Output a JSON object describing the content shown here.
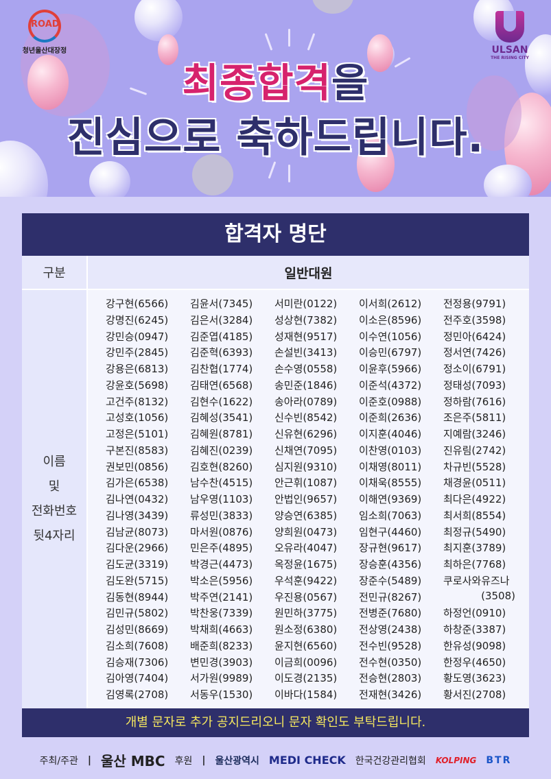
{
  "banner": {
    "headline_highlight": "최종합격",
    "headline_rest": "을",
    "headline_line2": "진심으로 축하드립니다.",
    "logo_left_caption": "청년울산대장정",
    "logo_left_mark": "ROAD",
    "logo_right_title": "ULSAN",
    "logo_right_sub": "THE RISING CITY",
    "colors": {
      "highlight": "#d6236d",
      "navy": "#2e2f6b",
      "background": "#aaa4ef"
    }
  },
  "table": {
    "title": "합격자 명단",
    "header_label": "구분",
    "header_value": "일반대원",
    "side_label": [
      "이름",
      "및",
      "전화번호",
      "뒷4자리"
    ],
    "columns": [
      [
        "강구현(6566)",
        "강명진(6245)",
        "강민승(0947)",
        "강민주(2845)",
        "강용은(6813)",
        "강윤호(5698)",
        "고건주(8132)",
        "고성호(1056)",
        "고정은(5101)",
        "구본진(8583)",
        "권보민(0856)",
        "김가은(6538)",
        "김나연(0432)",
        "김나영(3439)",
        "김남균(8073)",
        "김다운(2966)",
        "김도균(3319)",
        "김도완(5715)",
        "김동현(8944)",
        "김민규(5802)",
        "김성민(8669)",
        "김소희(7608)",
        "김승재(7306)",
        "김아영(7404)",
        "김영록(2708)"
      ],
      [
        "김윤서(7345)",
        "김은서(3284)",
        "김준엽(4185)",
        "김준혁(6393)",
        "김찬협(1774)",
        "김태연(6568)",
        "김현수(1622)",
        "김혜성(3541)",
        "김혜원(8781)",
        "김혜진(0239)",
        "김호현(8260)",
        "남수찬(4515)",
        "남우영(1103)",
        "류성민(3833)",
        "마서원(0876)",
        "민은주(4895)",
        "박경근(4473)",
        "박소은(5956)",
        "박주연(2141)",
        "박찬웅(7339)",
        "박채희(4663)",
        "배준희(8233)",
        "변민경(3903)",
        "서가원(9989)",
        "서동우(1530)"
      ],
      [
        "서미란(0122)",
        "성상현(7382)",
        "성재현(9517)",
        "손설빈(3413)",
        "손수영(0558)",
        "송민준(1846)",
        "송아라(0789)",
        "신수빈(8542)",
        "신유현(6296)",
        "신채연(7095)",
        "심지원(9310)",
        "안근휘(1087)",
        "안법인(9657)",
        "양승연(6385)",
        "양희원(0473)",
        "오유라(4047)",
        "옥정윤(1675)",
        "우석훈(9422)",
        "우진용(0567)",
        "원민하(3775)",
        "원소정(6380)",
        "윤지현(6560)",
        "이금희(0096)",
        "이도경(2135)",
        "이바다(1584)"
      ],
      [
        "이서희(2612)",
        "이소은(8596)",
        "이수연(1056)",
        "이승민(6797)",
        "이윤후(5966)",
        "이준석(4372)",
        "이준호(0988)",
        "이준희(2636)",
        "이지훈(4046)",
        "이찬영(0103)",
        "이채영(8011)",
        "이채욱(8555)",
        "이해연(9369)",
        "임소희(7063)",
        "임현구(4460)",
        "장규현(9617)",
        "장승훈(4356)",
        "장준수(5489)",
        "전민규(8267)",
        "전병준(7680)",
        "전상영(2438)",
        "전수빈(9528)",
        "전수현(0350)",
        "전승현(2803)",
        "전재현(3426)"
      ],
      [
        "전정용(9791)",
        "전주호(3598)",
        "정민아(6424)",
        "정서연(7426)",
        "정소이(6791)",
        "정태성(7093)",
        "정하람(7616)",
        "조은주(5811)",
        "지예람(3246)",
        "진유림(2742)",
        "차규빈(5528)",
        "채경윤(0511)",
        "최다은(4922)",
        "최서희(8554)",
        "최정규(5490)",
        "최지훈(3789)",
        "최하은(7768)",
        "쿠로사와유즈나",
        "(3508)",
        "하정언(0910)",
        "하창준(3387)",
        "한유성(9098)",
        "한정우(4650)",
        "황도영(3623)",
        "황서진(2708)"
      ]
    ],
    "footer_note": "개별 문자로 추가 공지드리오니 문자 확인도 부탁드립니다."
  },
  "sponsors": {
    "host_label": "주최/주관",
    "host_name": "울산 MBC",
    "support_label": "후원",
    "supporters": [
      "울산광역시",
      "MEDI CHECK",
      "한국건강관리협회",
      "KOLPING",
      "BTR"
    ]
  }
}
